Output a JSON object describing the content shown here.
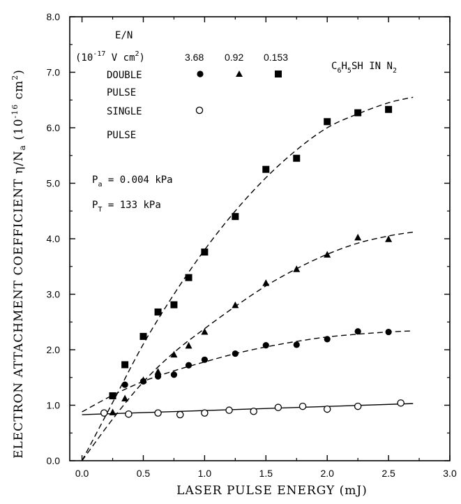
{
  "chart_data": {
    "type": "scatter",
    "title": "",
    "xlabel": "LASER PULSE ENERGY (mJ)",
    "ylabel": "ELECTRON ATTACHMENT COEFFICIENT η/Na (10-16 cm2)",
    "ylabel_parts": {
      "main": "ELECTRON ATTACHMENT COEFFICIENT η/N",
      "sub": "a",
      "open": " (10",
      "exp": "-16",
      "unit": " cm",
      "unit_exp": "2",
      "close": ")"
    },
    "xlim": [
      -0.1,
      3.0
    ],
    "ylim": [
      0.0,
      8.0
    ],
    "x_ticks": [
      0.0,
      0.5,
      1.0,
      1.5,
      2.0,
      2.5,
      3.0
    ],
    "x_tick_labels": [
      "0.0",
      "0.5",
      "1.0",
      "1.5",
      "2.0",
      "2.5",
      "3.0"
    ],
    "y_ticks": [
      0,
      1,
      2,
      3,
      4,
      5,
      6,
      7,
      8
    ],
    "y_tick_labels": [
      "0.0",
      "1.0",
      "2.0",
      "3.0",
      "4.0",
      "5.0",
      "6.0",
      "7.0",
      "8.0"
    ],
    "grid": false,
    "series": [
      {
        "name": "Double pulse, E/N = 0.153",
        "marker": "filled-square",
        "x": [
          0.25,
          0.35,
          0.5,
          0.62,
          0.75,
          0.87,
          1.0,
          1.25,
          1.5,
          1.75,
          2.0,
          2.25,
          2.5
        ],
        "y": [
          1.17,
          1.73,
          2.24,
          2.68,
          2.81,
          3.3,
          3.76,
          4.4,
          5.25,
          5.45,
          6.11,
          6.27,
          6.33
        ]
      },
      {
        "name": "Double pulse, E/N = 0.92",
        "marker": "filled-triangle",
        "x": [
          0.25,
          0.35,
          0.5,
          0.62,
          0.75,
          0.87,
          1.0,
          1.25,
          1.5,
          1.75,
          2.0,
          2.25,
          2.5
        ],
        "y": [
          0.87,
          1.12,
          1.45,
          1.6,
          1.91,
          2.07,
          2.32,
          2.8,
          3.2,
          3.45,
          3.71,
          4.02,
          3.99
        ]
      },
      {
        "name": "Double pulse, E/N = 3.68",
        "marker": "filled-circle",
        "x": [
          0.35,
          0.5,
          0.62,
          0.75,
          0.87,
          1.0,
          1.25,
          1.5,
          1.75,
          2.0,
          2.25,
          2.5
        ],
        "y": [
          1.37,
          1.43,
          1.52,
          1.55,
          1.72,
          1.82,
          1.93,
          2.08,
          2.09,
          2.19,
          2.33,
          2.32
        ]
      },
      {
        "name": "Single pulse",
        "marker": "open-circle",
        "x": [
          0.18,
          0.38,
          0.62,
          0.8,
          1.0,
          1.2,
          1.4,
          1.6,
          1.8,
          2.0,
          2.25,
          2.6
        ],
        "y": [
          0.86,
          0.84,
          0.86,
          0.83,
          0.86,
          0.91,
          0.89,
          0.96,
          0.98,
          0.93,
          0.98,
          1.04
        ]
      }
    ],
    "fit_curves": [
      {
        "style": "dashed",
        "x": [
          0.0,
          0.25,
          0.5,
          0.75,
          1.0,
          1.25,
          1.5,
          1.75,
          2.0,
          2.25,
          2.5,
          2.7
        ],
        "y": [
          0.0,
          1.05,
          2.1,
          3.0,
          3.8,
          4.5,
          5.1,
          5.6,
          6.0,
          6.25,
          6.45,
          6.55
        ]
      },
      {
        "style": "dashed",
        "x": [
          0.0,
          0.25,
          0.5,
          0.75,
          1.0,
          1.25,
          1.5,
          1.75,
          2.0,
          2.25,
          2.5,
          2.7
        ],
        "y": [
          0.0,
          0.75,
          1.42,
          1.95,
          2.38,
          2.78,
          3.15,
          3.46,
          3.72,
          3.92,
          4.05,
          4.12
        ]
      },
      {
        "style": "dashed",
        "x": [
          0.0,
          0.25,
          0.5,
          0.75,
          1.0,
          1.25,
          1.5,
          1.75,
          2.0,
          2.25,
          2.5,
          2.7
        ],
        "y": [
          0.88,
          1.18,
          1.43,
          1.62,
          1.78,
          1.93,
          2.05,
          2.15,
          2.23,
          2.28,
          2.32,
          2.34
        ]
      },
      {
        "style": "solid",
        "x": [
          0.0,
          2.7
        ],
        "y": [
          0.83,
          1.03
        ]
      }
    ]
  },
  "legend": {
    "header": "E/N",
    "units_prefix": "(10",
    "units_exp": "-17",
    "units_mid": " V cm",
    "units_exp2": "2",
    "units_suffix": ")",
    "values": [
      "3.68",
      "0.92",
      "0.153"
    ],
    "double_label_1": "DOUBLE",
    "double_label_2": "PULSE",
    "single_label_1": "SINGLE",
    "single_label_2": "PULSE"
  },
  "species": {
    "c": "C",
    "c_sub": "6",
    "h": "H",
    "h_sub": "5",
    "sh": "SH IN N",
    "n_sub": "2"
  },
  "conditions": {
    "pa_label": "P",
    "pa_sub": "a",
    "pa_value": " = 0.004 kPa",
    "pt_label": "P",
    "pt_sub": "T",
    "pt_value": " = 133 kPa"
  }
}
